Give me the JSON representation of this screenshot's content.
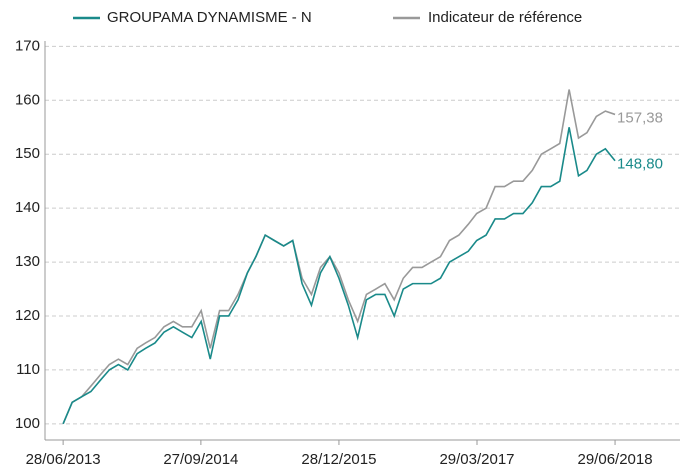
{
  "chart_data": {
    "type": "line",
    "x": [
      "28/06/2013",
      "28/07/2013",
      "28/08/2013",
      "28/09/2013",
      "28/10/2013",
      "28/11/2013",
      "28/12/2013",
      "28/01/2014",
      "28/02/2014",
      "28/03/2014",
      "28/04/2014",
      "28/05/2014",
      "28/06/2014",
      "28/07/2014",
      "28/08/2014",
      "28/09/2014",
      "28/10/2014",
      "28/11/2014",
      "28/12/2014",
      "28/01/2015",
      "28/02/2015",
      "28/03/2015",
      "28/04/2015",
      "28/05/2015",
      "28/06/2015",
      "28/07/2015",
      "28/08/2015",
      "28/09/2015",
      "28/10/2015",
      "28/11/2015",
      "28/12/2015",
      "28/01/2016",
      "28/02/2016",
      "28/03/2016",
      "28/04/2016",
      "28/05/2016",
      "28/06/2016",
      "28/07/2016",
      "28/08/2016",
      "28/09/2016",
      "28/10/2016",
      "28/11/2016",
      "28/12/2016",
      "28/01/2017",
      "28/02/2017",
      "28/03/2017",
      "28/04/2017",
      "28/05/2017",
      "28/06/2017",
      "28/07/2017",
      "28/08/2017",
      "28/09/2017",
      "28/10/2017",
      "28/11/2017",
      "28/12/2017",
      "28/01/2018",
      "28/02/2018",
      "28/03/2018",
      "28/04/2018",
      "28/05/2018",
      "29/06/2018"
    ],
    "series": [
      {
        "name": "GROUPAMA DYNAMISME - N",
        "color": "#1a8a8a",
        "values": [
          100,
          104,
          105,
          106,
          108,
          110,
          111,
          110,
          113,
          114,
          115,
          117,
          118,
          117,
          116,
          119,
          112,
          120,
          120,
          123,
          128,
          131,
          135,
          134,
          133,
          134,
          126,
          122,
          128,
          131,
          127,
          122,
          116,
          123,
          124,
          124,
          120,
          125,
          126,
          126,
          126,
          127,
          130,
          131,
          132,
          134,
          135,
          138,
          138,
          139,
          139,
          141,
          144,
          144,
          145,
          155,
          146,
          147,
          150,
          151,
          148.8
        ],
        "value_labels": [
          null,
          null,
          null,
          null,
          null,
          null,
          null,
          null,
          null,
          null,
          null,
          null,
          null,
          null,
          null,
          null,
          null,
          null,
          null,
          null,
          null,
          null,
          null,
          null,
          null,
          null,
          null,
          null,
          null,
          null,
          null,
          null,
          null,
          null,
          null,
          null,
          null,
          null,
          null,
          null,
          null,
          null,
          null,
          null,
          null,
          null,
          null,
          null,
          null,
          null,
          null,
          null,
          null,
          null,
          null,
          null,
          null,
          null,
          null,
          null,
          "148,80"
        ]
      },
      {
        "name": "Indicateur de référence",
        "color": "#999999",
        "values": [
          100,
          104,
          105,
          107,
          109,
          111,
          112,
          111,
          114,
          115,
          116,
          118,
          119,
          118,
          118,
          121,
          114,
          121,
          121,
          124,
          128,
          131,
          135,
          134,
          133,
          134,
          127,
          124,
          129,
          131,
          128,
          123,
          119,
          124,
          125,
          126,
          123,
          127,
          129,
          129,
          130,
          131,
          134,
          135,
          137,
          139,
          140,
          144,
          144,
          145,
          145,
          147,
          150,
          151,
          152,
          162,
          153,
          154,
          157,
          158,
          157.38
        ],
        "value_labels": [
          null,
          null,
          null,
          null,
          null,
          null,
          null,
          null,
          null,
          null,
          null,
          null,
          null,
          null,
          null,
          null,
          null,
          null,
          null,
          null,
          null,
          null,
          null,
          null,
          null,
          null,
          null,
          null,
          null,
          null,
          null,
          null,
          null,
          null,
          null,
          null,
          null,
          null,
          null,
          null,
          null,
          null,
          null,
          null,
          null,
          null,
          null,
          null,
          null,
          null,
          null,
          null,
          null,
          null,
          null,
          null,
          null,
          null,
          null,
          null,
          "157,38"
        ]
      }
    ],
    "xlim": [
      "29/04/2013",
      "30/01/2019"
    ],
    "xticks": [
      "28/06/2013",
      "27/09/2014",
      "28/12/2015",
      "29/03/2017",
      "29/06/2018"
    ],
    "ylim": [
      97,
      171
    ],
    "yticks": [
      100,
      110,
      120,
      130,
      140,
      150,
      160,
      170
    ],
    "grid": true
  }
}
